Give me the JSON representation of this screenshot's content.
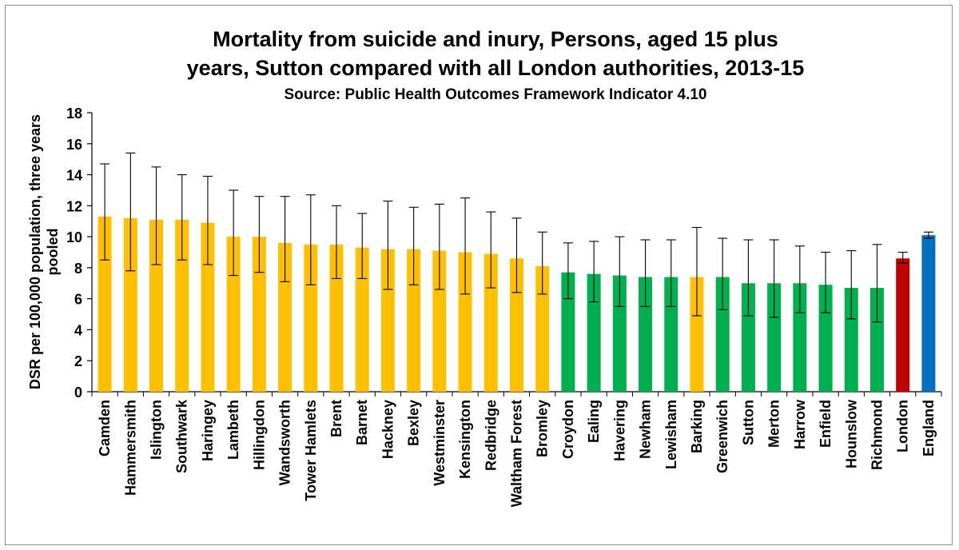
{
  "chart_data": {
    "type": "bar",
    "title_line1": "Mortality from suicide and inury,  Persons, aged 15 plus",
    "title_line2": "years, Sutton compared with all London authorities, 2013-15",
    "subtitle": "Source: Public Health Outcomes Framework Indicator 4.10",
    "ylabel_line1": "DSR per 100,000 population, three years",
    "ylabel_line2": "pooled",
    "xlabel": "",
    "ylim": [
      0,
      18
    ],
    "yticks": [
      0,
      2,
      4,
      6,
      8,
      10,
      12,
      14,
      16,
      18
    ],
    "grid": false,
    "legend": "none",
    "colors": {
      "amber": "#ffc000",
      "green": "#00b050",
      "red": "#c00000",
      "blue": "#0070c0",
      "error_bar": "#000000"
    },
    "categories": [
      "Camden",
      "Hammersmith",
      "Islington",
      "Southwark",
      "Haringey",
      "Lambeth",
      "Hillingdon",
      "Wandsworth",
      "Tower Hamlets",
      "Brent",
      "Barnet",
      "Hackney",
      "Bexley",
      "Westminster",
      "Kensington",
      "Redbridge",
      "Waltham Forest",
      "Bromley",
      "Croydon",
      "Ealing",
      "Havering",
      "Newham",
      "Lewisham",
      "Barking",
      "Greenwich",
      "Sutton",
      "Merton",
      "Harrow",
      "Enfield",
      "Hounslow",
      "Richmond",
      "London",
      "England"
    ],
    "values": [
      11.3,
      11.2,
      11.1,
      11.1,
      10.9,
      10.0,
      10.0,
      9.6,
      9.5,
      9.5,
      9.3,
      9.2,
      9.2,
      9.1,
      9.0,
      8.9,
      8.6,
      8.1,
      7.7,
      7.6,
      7.5,
      7.4,
      7.4,
      7.4,
      7.4,
      7.0,
      7.0,
      7.0,
      6.9,
      6.7,
      6.7,
      8.6,
      10.1
    ],
    "lower_ci": [
      8.5,
      7.8,
      8.2,
      8.5,
      8.2,
      7.5,
      7.7,
      7.1,
      6.9,
      7.3,
      7.3,
      6.6,
      6.9,
      6.6,
      6.3,
      6.7,
      6.4,
      6.3,
      6.0,
      5.8,
      5.5,
      5.5,
      5.5,
      4.9,
      5.3,
      4.9,
      4.8,
      5.1,
      5.1,
      4.7,
      4.5,
      8.3,
      9.9
    ],
    "upper_ci": [
      14.7,
      15.4,
      14.5,
      14.0,
      13.9,
      13.0,
      12.6,
      12.6,
      12.7,
      12.0,
      11.5,
      12.3,
      11.9,
      12.1,
      12.5,
      11.6,
      11.2,
      10.3,
      9.6,
      9.7,
      10.0,
      9.8,
      9.8,
      10.6,
      9.9,
      9.8,
      9.8,
      9.4,
      9.0,
      9.1,
      9.5,
      9.0,
      10.3
    ],
    "bar_colors": [
      "amber",
      "amber",
      "amber",
      "amber",
      "amber",
      "amber",
      "amber",
      "amber",
      "amber",
      "amber",
      "amber",
      "amber",
      "amber",
      "amber",
      "amber",
      "amber",
      "amber",
      "amber",
      "green",
      "green",
      "green",
      "green",
      "green",
      "amber",
      "green",
      "green",
      "green",
      "green",
      "green",
      "green",
      "green",
      "red",
      "blue"
    ]
  }
}
